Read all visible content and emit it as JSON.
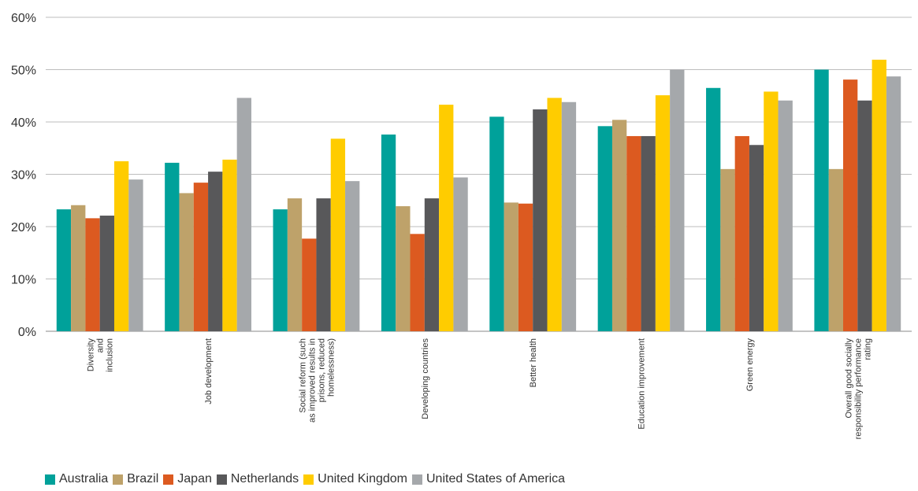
{
  "chart_data": {
    "type": "bar",
    "title": "",
    "xlabel": "",
    "ylabel": "",
    "ylim": [
      0,
      60
    ],
    "yticks": [
      "0%",
      "10%",
      "20%",
      "30%",
      "40%",
      "50%",
      "60%"
    ],
    "grid": true,
    "legend_position": "bottom",
    "categories": [
      [
        "Diversity",
        "and",
        "inclusion"
      ],
      [
        "Job development"
      ],
      [
        "Social reform (such",
        "as improved results in",
        "prisons, reduced",
        "homelessness)"
      ],
      [
        "Developing countries"
      ],
      [
        "Better health"
      ],
      [
        "Education improvement"
      ],
      [
        "Green energy"
      ],
      [
        "Overall good socially",
        "responsibility performance",
        "rating"
      ]
    ],
    "series": [
      {
        "name": "Australia",
        "color": "#00A19A",
        "values": [
          23.3,
          32.2,
          23.3,
          37.6,
          41.0,
          39.2,
          46.5,
          50.0
        ]
      },
      {
        "name": "Brazil",
        "color": "#BEA26A",
        "values": [
          24.1,
          26.4,
          25.4,
          23.9,
          24.6,
          40.4,
          31.0,
          31.0
        ]
      },
      {
        "name": "Japan",
        "color": "#DC5A20",
        "values": [
          21.6,
          28.4,
          17.7,
          18.6,
          24.4,
          37.3,
          37.3,
          48.1
        ]
      },
      {
        "name": "Netherlands",
        "color": "#58585A",
        "values": [
          22.1,
          30.5,
          25.4,
          25.4,
          42.4,
          37.3,
          35.6,
          44.1
        ]
      },
      {
        "name": "United Kingdom",
        "color": "#FFCC00",
        "values": [
          32.5,
          32.8,
          36.8,
          43.3,
          44.6,
          45.1,
          45.8,
          51.9
        ]
      },
      {
        "name": "United States of America",
        "color": "#A5A8AB",
        "values": [
          29.0,
          44.6,
          28.7,
          29.4,
          43.8,
          50.0,
          44.1,
          48.7
        ]
      }
    ]
  }
}
